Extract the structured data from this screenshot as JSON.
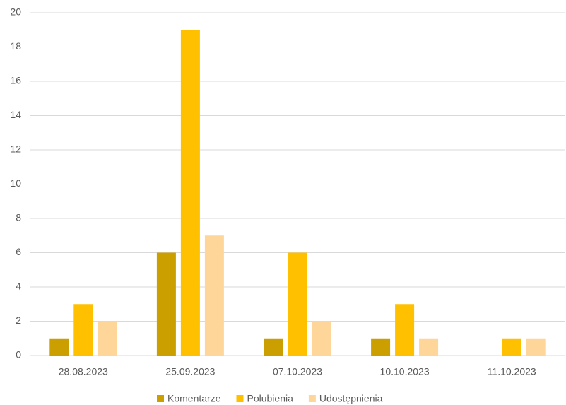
{
  "chart_data": {
    "type": "bar",
    "categories": [
      "28.08.2023",
      "25.09.2023",
      "07.10.2023",
      "10.10.2023",
      "11.10.2023"
    ],
    "series": [
      {
        "name": "Komentarze",
        "color": "#cc9f00",
        "values": [
          1,
          6,
          1,
          1,
          0
        ]
      },
      {
        "name": "Polubienia",
        "color": "#ffc000",
        "values": [
          3,
          19,
          6,
          3,
          1
        ]
      },
      {
        "name": "Udostępnienia",
        "color": "#ffd699",
        "values": [
          2,
          7,
          2,
          1,
          1
        ]
      }
    ],
    "ylim": [
      0,
      20
    ],
    "yticks": [
      0,
      2,
      4,
      6,
      8,
      10,
      12,
      14,
      16,
      18,
      20
    ],
    "grid": true,
    "legend": "bottom"
  }
}
